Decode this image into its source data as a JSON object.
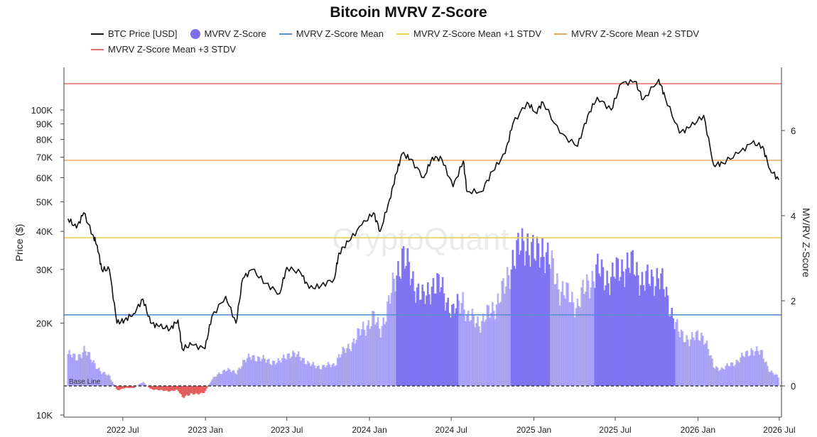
{
  "chart_data": {
    "type": "bar",
    "title": "Bitcoin MVRV Z-Score",
    "ylabel_left": "Price ($)",
    "ylabel_right": "MV/RV Z-Score",
    "watermark": "CryptoQuant",
    "baseline_label": "Base Line",
    "y_left_scale": "log",
    "y_left_ticks": [
      "100K",
      "90K",
      "80K",
      "70K",
      "60K",
      "50K",
      "40K",
      "30K",
      "20K",
      "10K"
    ],
    "y_left_tick_values": [
      100000,
      90000,
      80000,
      70000,
      60000,
      50000,
      40000,
      30000,
      20000,
      10000
    ],
    "y_right_ticks": [
      "6",
      "4",
      "2",
      "0"
    ],
    "y_right_tick_values": [
      6,
      4,
      2,
      0
    ],
    "x_ticks": [
      "2022 Jul",
      "2023 Jan",
      "2023 Jul",
      "2024 Jan",
      "2024 Jul",
      "2025 Jan",
      "2025 Jul",
      "2026 Jan",
      "2026 Jul"
    ],
    "x_tick_dates": [
      "2022-07-01",
      "2023-01-01",
      "2023-07-01",
      "2024-01-01",
      "2024-07-01",
      "2025-01-01",
      "2025-07-01",
      "2026-01-01",
      "2026-07-01"
    ],
    "grid": false,
    "legend_position": "top",
    "reference_lines": [
      {
        "name": "MVRV Z-Score Mean",
        "value": 1.67,
        "color": "#5b8fd6"
      },
      {
        "name": "MVRV Z-Score Mean +1 STDV",
        "value": 3.48,
        "color": "#e6cf5a"
      },
      {
        "name": "MVRV Z-Score Mean +2 STDV",
        "value": 5.3,
        "color": "#e8a862"
      },
      {
        "name": "MVRV Z-Score Mean +3 STDV",
        "value": 7.1,
        "color": "#e8726f"
      }
    ],
    "series": [
      {
        "name": "BTC Price [USD]",
        "kind": "line",
        "color": "#111111",
        "points": [
          [
            "2022-03-01",
            44000
          ],
          [
            "2022-03-20",
            41000
          ],
          [
            "2022-04-05",
            46000
          ],
          [
            "2022-04-25",
            39000
          ],
          [
            "2022-05-05",
            36000
          ],
          [
            "2022-05-15",
            30000
          ],
          [
            "2022-06-01",
            30000
          ],
          [
            "2022-06-18",
            20000
          ],
          [
            "2022-07-05",
            20500
          ],
          [
            "2022-07-25",
            21500
          ],
          [
            "2022-08-15",
            24000
          ],
          [
            "2022-09-01",
            20000
          ],
          [
            "2022-09-20",
            19500
          ],
          [
            "2022-10-15",
            19200
          ],
          [
            "2022-11-01",
            20500
          ],
          [
            "2022-11-10",
            16500
          ],
          [
            "2022-12-01",
            17000
          ],
          [
            "2022-12-31",
            16500
          ],
          [
            "2023-01-15",
            21000
          ],
          [
            "2023-02-15",
            24500
          ],
          [
            "2023-03-10",
            20000
          ],
          [
            "2023-03-25",
            28000
          ],
          [
            "2023-04-15",
            30000
          ],
          [
            "2023-05-15",
            27000
          ],
          [
            "2023-06-15",
            25000
          ],
          [
            "2023-07-01",
            30500
          ],
          [
            "2023-08-01",
            29200
          ],
          [
            "2023-08-20",
            26000
          ],
          [
            "2023-09-15",
            26500
          ],
          [
            "2023-10-15",
            28000
          ],
          [
            "2023-10-25",
            34000
          ],
          [
            "2023-11-15",
            37000
          ],
          [
            "2023-12-15",
            42000
          ],
          [
            "2024-01-10",
            46000
          ],
          [
            "2024-01-25",
            40000
          ],
          [
            "2024-02-15",
            51000
          ],
          [
            "2024-03-01",
            62000
          ],
          [
            "2024-03-14",
            72000
          ],
          [
            "2024-04-01",
            69000
          ],
          [
            "2024-05-01",
            60000
          ],
          [
            "2024-05-20",
            70000
          ],
          [
            "2024-06-10",
            69000
          ],
          [
            "2024-07-05",
            56000
          ],
          [
            "2024-07-28",
            68000
          ],
          [
            "2024-08-05",
            54000
          ],
          [
            "2024-09-06",
            54000
          ],
          [
            "2024-10-01",
            63000
          ],
          [
            "2024-10-29",
            72000
          ],
          [
            "2024-11-15",
            90000
          ],
          [
            "2024-12-17",
            106000
          ],
          [
            "2025-01-05",
            98000
          ],
          [
            "2025-01-21",
            106000
          ],
          [
            "2025-02-28",
            84000
          ],
          [
            "2025-04-08",
            76000
          ],
          [
            "2025-05-01",
            96000
          ],
          [
            "2025-05-22",
            110000
          ],
          [
            "2025-06-22",
            100000
          ],
          [
            "2025-07-14",
            122000
          ],
          [
            "2025-08-14",
            124000
          ],
          [
            "2025-09-01",
            108000
          ],
          [
            "2025-10-06",
            126000
          ],
          [
            "2025-10-20",
            110000
          ],
          [
            "2025-11-21",
            84000
          ],
          [
            "2025-12-15",
            88000
          ],
          [
            "2026-01-14",
            96000
          ],
          [
            "2026-02-05",
            66000
          ],
          [
            "2026-02-25",
            67000
          ],
          [
            "2026-04-01",
            72000
          ],
          [
            "2026-05-01",
            78000
          ],
          [
            "2026-05-25",
            76000
          ],
          [
            "2026-06-10",
            64000
          ],
          [
            "2026-06-30",
            59000
          ]
        ]
      },
      {
        "name": "MVRV Z-Score",
        "kind": "bar",
        "color": "#7c6ff0",
        "negative_color": "#e04b4b",
        "points": [
          [
            "2022-03-01",
            0.75
          ],
          [
            "2022-03-20",
            0.65
          ],
          [
            "2022-04-05",
            0.85
          ],
          [
            "2022-04-25",
            0.6
          ],
          [
            "2022-05-05",
            0.45
          ],
          [
            "2022-05-15",
            0.3
          ],
          [
            "2022-06-01",
            0.25
          ],
          [
            "2022-06-18",
            -0.1
          ],
          [
            "2022-07-05",
            -0.05
          ],
          [
            "2022-07-25",
            -0.05
          ],
          [
            "2022-08-15",
            0.1
          ],
          [
            "2022-09-01",
            -0.07
          ],
          [
            "2022-09-20",
            -0.1
          ],
          [
            "2022-10-15",
            -0.12
          ],
          [
            "2022-11-01",
            -0.1
          ],
          [
            "2022-11-10",
            -0.25
          ],
          [
            "2022-12-01",
            -0.2
          ],
          [
            "2022-12-31",
            -0.15
          ],
          [
            "2023-01-15",
            0.15
          ],
          [
            "2023-02-15",
            0.4
          ],
          [
            "2023-03-10",
            0.3
          ],
          [
            "2023-03-25",
            0.55
          ],
          [
            "2023-04-15",
            0.7
          ],
          [
            "2023-05-15",
            0.6
          ],
          [
            "2023-06-15",
            0.55
          ],
          [
            "2023-07-01",
            0.75
          ],
          [
            "2023-08-01",
            0.7
          ],
          [
            "2023-08-20",
            0.5
          ],
          [
            "2023-09-15",
            0.45
          ],
          [
            "2023-10-15",
            0.5
          ],
          [
            "2023-10-25",
            0.7
          ],
          [
            "2023-11-15",
            0.9
          ],
          [
            "2023-12-15",
            1.3
          ],
          [
            "2024-01-10",
            1.6
          ],
          [
            "2024-01-25",
            1.3
          ],
          [
            "2024-02-15",
            2.0
          ],
          [
            "2024-03-01",
            2.6
          ],
          [
            "2024-03-14",
            3.1
          ],
          [
            "2024-04-01",
            2.6
          ],
          [
            "2024-05-01",
            2.0
          ],
          [
            "2024-05-20",
            2.4
          ],
          [
            "2024-06-10",
            2.3
          ],
          [
            "2024-07-05",
            1.7
          ],
          [
            "2024-07-28",
            2.1
          ],
          [
            "2024-08-05",
            1.6
          ],
          [
            "2024-09-06",
            1.5
          ],
          [
            "2024-10-01",
            1.8
          ],
          [
            "2024-10-29",
            2.3
          ],
          [
            "2024-11-15",
            3.0
          ],
          [
            "2024-12-17",
            3.4
          ],
          [
            "2025-01-05",
            3.0
          ],
          [
            "2025-01-21",
            3.3
          ],
          [
            "2025-02-28",
            2.3
          ],
          [
            "2025-04-08",
            1.9
          ],
          [
            "2025-05-01",
            2.4
          ],
          [
            "2025-05-22",
            2.7
          ],
          [
            "2025-06-22",
            2.5
          ],
          [
            "2025-07-14",
            2.8
          ],
          [
            "2025-08-14",
            2.8
          ],
          [
            "2025-09-01",
            2.4
          ],
          [
            "2025-10-06",
            2.6
          ],
          [
            "2025-10-20",
            2.2
          ],
          [
            "2025-11-21",
            1.2
          ],
          [
            "2025-12-15",
            1.1
          ],
          [
            "2026-01-14",
            1.2
          ],
          [
            "2026-02-05",
            0.45
          ],
          [
            "2026-02-25",
            0.4
          ],
          [
            "2026-04-01",
            0.6
          ],
          [
            "2026-05-01",
            0.85
          ],
          [
            "2026-05-25",
            0.75
          ],
          [
            "2026-06-10",
            0.35
          ],
          [
            "2026-06-30",
            0.2
          ]
        ]
      }
    ]
  }
}
